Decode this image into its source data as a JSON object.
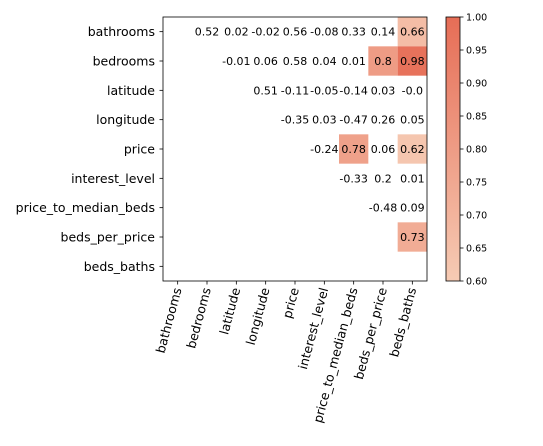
{
  "chart_data": {
    "type": "heatmap",
    "title": "",
    "xlabel": "",
    "ylabel": "",
    "row_labels": [
      "bathrooms",
      "bedrooms",
      "latitude",
      "longitude",
      "price",
      "interest_level",
      "price_to_median_beds",
      "beds_per_price",
      "beds_baths"
    ],
    "col_labels": [
      "bathrooms",
      "bedrooms",
      "latitude",
      "longitude",
      "price",
      "interest_level",
      "price_to_median_beds",
      "beds_per_price",
      "beds_baths"
    ],
    "matrix_display": [
      [
        "",
        "0.52",
        "0.02",
        "-0.02",
        "0.56",
        "-0.08",
        "0.33",
        "0.14",
        "0.66"
      ],
      [
        "",
        "",
        "-0.01",
        "0.06",
        "0.58",
        "0.04",
        "0.01",
        "0.8",
        "0.98"
      ],
      [
        "",
        "",
        "",
        "0.51",
        "-0.11",
        "-0.05",
        "-0.14",
        "0.03",
        "-0.0"
      ],
      [
        "",
        "",
        "",
        "",
        "-0.35",
        "0.03",
        "-0.47",
        "0.26",
        "0.05"
      ],
      [
        "",
        "",
        "",
        "",
        "",
        "-0.24",
        "0.78",
        "0.06",
        "0.62"
      ],
      [
        "",
        "",
        "",
        "",
        "",
        "",
        "-0.33",
        "0.2",
        "0.01"
      ],
      [
        "",
        "",
        "",
        "",
        "",
        "",
        "",
        "-0.48",
        "0.09"
      ],
      [
        "",
        "",
        "",
        "",
        "",
        "",
        "",
        "",
        "0.73"
      ],
      [
        "",
        "",
        "",
        "",
        "",
        "",
        "",
        "",
        ""
      ]
    ],
    "color_range": [
      0.6,
      1.0
    ],
    "colorbar_ticks": [
      "0.60",
      "0.65",
      "0.70",
      "0.75",
      "0.80",
      "0.85",
      "0.90",
      "0.95",
      "1.00"
    ],
    "colors": {
      "low": "#f6cbb4",
      "high": "#e66d56"
    }
  }
}
